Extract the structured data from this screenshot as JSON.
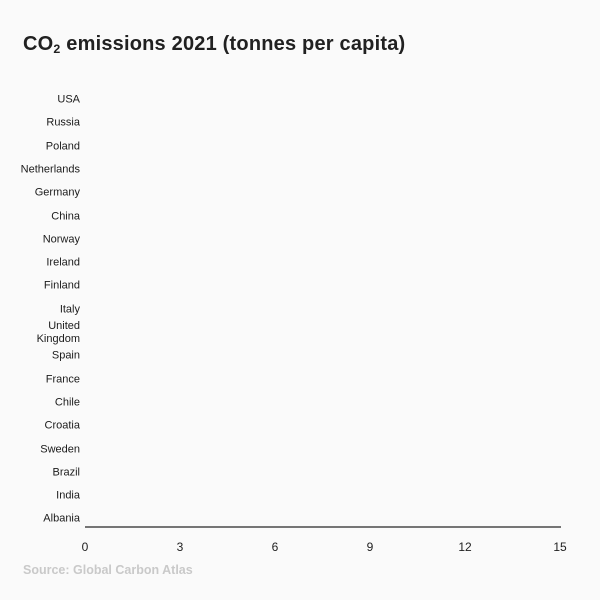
{
  "title_parts": {
    "prefix": "CO",
    "sub": "2",
    "rest": " emissions 2021 (tonnes per capita)"
  },
  "source": "Source: Global Carbon Atlas",
  "colors": {
    "background": "#fafafa",
    "title": "#212121",
    "label": "#1b1b1b",
    "axis-line": "#757575",
    "tick": "#212121",
    "source": "#c9c9c9"
  },
  "chart_data": {
    "type": "bar",
    "orientation": "horizontal",
    "title": "CO₂ emissions 2021 (tonnes per capita)",
    "categories": [
      "USA",
      "Russia",
      "Poland",
      "Netherlands",
      "Germany",
      "China",
      "Norway",
      "Ireland",
      "Finland",
      "Italy",
      "United Kingdom",
      "Spain",
      "France",
      "Chile",
      "Croatia",
      "Sweden",
      "Brazil",
      "India",
      "Albania"
    ],
    "values": [
      0,
      0,
      0,
      0,
      0,
      0,
      0,
      0,
      0,
      0,
      0,
      0,
      0,
      0,
      0,
      0,
      0,
      0,
      0
    ],
    "bars_rendered": false,
    "xlabel": "",
    "ylabel": "",
    "xlim": [
      0,
      15
    ],
    "xticks": [
      0,
      3,
      6,
      9,
      12,
      15
    ],
    "grid": false,
    "legend": false,
    "source": "Source: Global Carbon Atlas"
  }
}
